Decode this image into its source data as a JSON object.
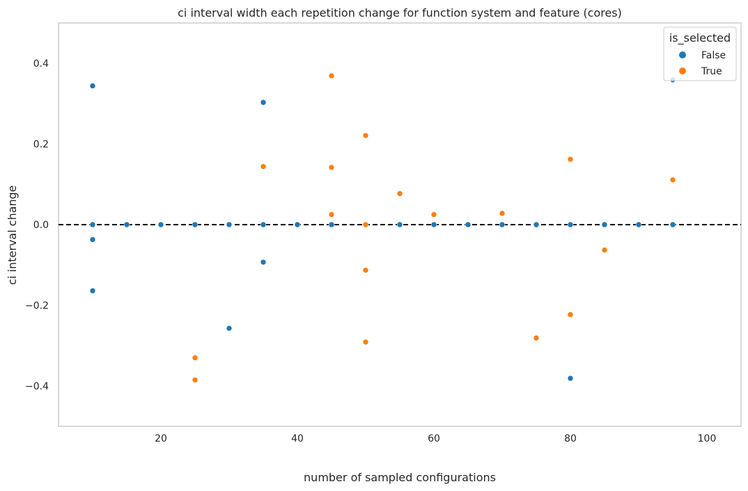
{
  "chart_data": {
    "type": "scatter",
    "title": "ci interval width each repetition change for function system and feature (cores)",
    "xlabel": "number of sampled configurations",
    "ylabel": "ci interval change",
    "xlim": [
      5,
      105
    ],
    "ylim": [
      -0.5,
      0.5
    ],
    "xticks": [
      20,
      40,
      60,
      80,
      100
    ],
    "yticks": [
      0.4,
      0.2,
      0.0,
      -0.2,
      -0.4
    ],
    "ytick_labels": [
      "0.4",
      "0.2",
      "0.0",
      "−0.2",
      "−0.4"
    ],
    "grid": false,
    "reference_line": {
      "y": 0.0,
      "style": "dashed",
      "color": "#000000"
    },
    "legend": {
      "title": "is_selected",
      "position": "top-right"
    },
    "series": [
      {
        "name": "False",
        "color": "#1f77b4",
        "points": [
          {
            "x": 10,
            "y": 0.344
          },
          {
            "x": 10,
            "y": 0.0
          },
          {
            "x": 10,
            "y": -0.037
          },
          {
            "x": 10,
            "y": -0.164
          },
          {
            "x": 15,
            "y": 0.0
          },
          {
            "x": 20,
            "y": 0.0
          },
          {
            "x": 25,
            "y": 0.0
          },
          {
            "x": 30,
            "y": 0.0
          },
          {
            "x": 30,
            "y": -0.257
          },
          {
            "x": 35,
            "y": 0.303
          },
          {
            "x": 35,
            "y": 0.0
          },
          {
            "x": 35,
            "y": -0.093
          },
          {
            "x": 40,
            "y": 0.0
          },
          {
            "x": 45,
            "y": 0.0
          },
          {
            "x": 55,
            "y": 0.0
          },
          {
            "x": 60,
            "y": 0.0
          },
          {
            "x": 65,
            "y": 0.0
          },
          {
            "x": 70,
            "y": 0.0
          },
          {
            "x": 75,
            "y": 0.0
          },
          {
            "x": 80,
            "y": 0.0
          },
          {
            "x": 80,
            "y": -0.381
          },
          {
            "x": 85,
            "y": 0.0
          },
          {
            "x": 90,
            "y": 0.0
          },
          {
            "x": 95,
            "y": 0.359
          },
          {
            "x": 95,
            "y": 0.0
          }
        ]
      },
      {
        "name": "True",
        "color": "#ff7f0e",
        "points": [
          {
            "x": 25,
            "y": -0.33
          },
          {
            "x": 25,
            "y": -0.385
          },
          {
            "x": 35,
            "y": 0.144
          },
          {
            "x": 45,
            "y": 0.369
          },
          {
            "x": 45,
            "y": 0.142
          },
          {
            "x": 45,
            "y": 0.025
          },
          {
            "x": 50,
            "y": 0.221
          },
          {
            "x": 50,
            "y": 0.0
          },
          {
            "x": 50,
            "y": -0.113
          },
          {
            "x": 50,
            "y": -0.291
          },
          {
            "x": 55,
            "y": 0.077
          },
          {
            "x": 60,
            "y": 0.025
          },
          {
            "x": 70,
            "y": 0.028
          },
          {
            "x": 75,
            "y": -0.281
          },
          {
            "x": 80,
            "y": 0.162
          },
          {
            "x": 80,
            "y": -0.223
          },
          {
            "x": 85,
            "y": -0.063
          },
          {
            "x": 95,
            "y": 0.111
          }
        ]
      }
    ]
  }
}
